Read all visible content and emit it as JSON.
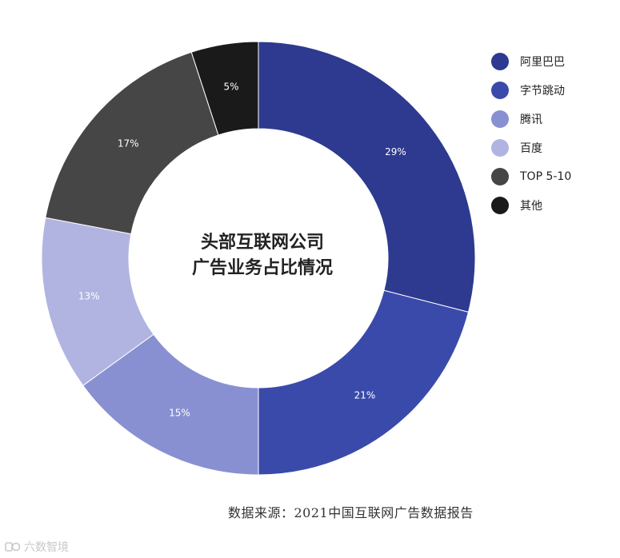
{
  "chart_data": {
    "type": "pie",
    "title": "头部互联网公司广告业务占比情况",
    "title_lines": [
      "头部互联网公司",
      "广告业务占比情况"
    ],
    "categories": [
      "阿里巴巴",
      "字节跳动",
      "腾讯",
      "百度",
      "TOP 5-10",
      "其他"
    ],
    "values": [
      29,
      21,
      15,
      13,
      17,
      5
    ],
    "labels": [
      "29%",
      "21%",
      "15%",
      "13%",
      "17%",
      "5%"
    ],
    "colors": [
      "#2e3a8f",
      "#3a4aab",
      "#8890d2",
      "#b1b4e1",
      "#464646",
      "#1a1a1a"
    ],
    "donut": true,
    "legend_position": "right"
  },
  "footer": {
    "source": "数据来源：2021中国互联网广告数据报告",
    "watermark": "六数智境"
  }
}
